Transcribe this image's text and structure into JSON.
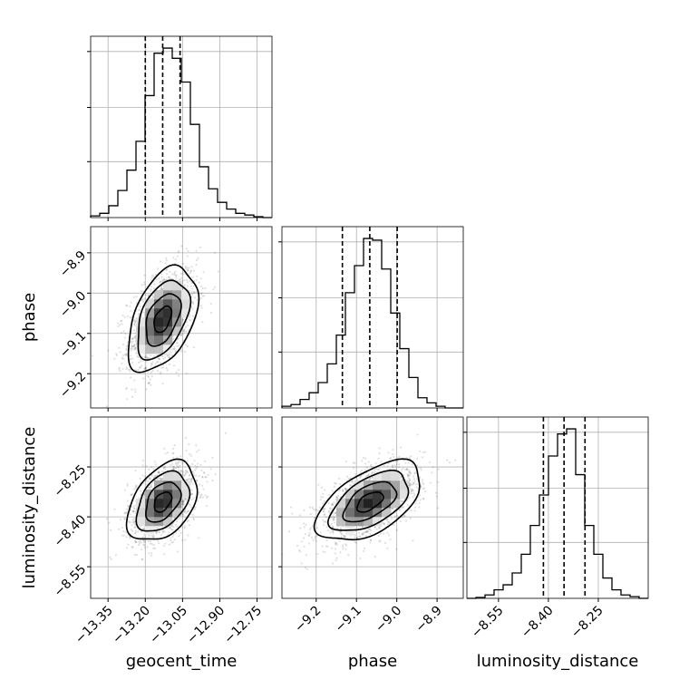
{
  "chart_data": {
    "type": "corner",
    "grid": true,
    "parameters": [
      "geocent_time",
      "phase",
      "luminosity_distance"
    ],
    "ranges": {
      "geocent_time": [
        -13.42,
        -12.69
      ],
      "phase": [
        -9.285,
        -8.835
      ],
      "luminosity_distance": [
        -8.645,
        -8.1
      ]
    },
    "ticks": {
      "geocent_time": [
        -13.35,
        -13.2,
        -13.05,
        -12.9,
        -12.75
      ],
      "phase": [
        -9.2,
        -9.1,
        -9.0,
        -8.9
      ],
      "luminosity_distance": [
        -8.55,
        -8.4,
        -8.25
      ]
    },
    "tick_labels": {
      "geocent_time": [
        "−13.35",
        "−13.20",
        "−13.05",
        "−12.90",
        "−12.75"
      ],
      "phase": [
        "−9.2",
        "−9.1",
        "−9.0",
        "−8.9"
      ],
      "luminosity_distance": [
        "−8.55",
        "−8.40",
        "−8.25"
      ]
    },
    "quantiles": {
      "geocent_time": [
        -13.2,
        -13.13,
        -13.06
      ],
      "phase": [
        -9.135,
        -9.067,
        -8.999
      ],
      "luminosity_distance": [
        -8.415,
        -8.353,
        -8.29
      ]
    },
    "histograms": {
      "geocent_time": {
        "edges": [
          -13.42,
          -13.3835,
          -13.347,
          -13.3105,
          -13.274,
          -13.2375,
          -13.201,
          -13.1645,
          -13.128,
          -13.0915,
          -13.055,
          -13.0185,
          -12.982,
          -12.9455,
          -12.909,
          -12.8725,
          -12.836,
          -12.7995,
          -12.763,
          -12.7265,
          -12.69
        ],
        "counts": [
          0.01,
          0.025,
          0.07,
          0.16,
          0.28,
          0.45,
          0.72,
          0.97,
          1.0,
          0.94,
          0.8,
          0.55,
          0.3,
          0.17,
          0.09,
          0.05,
          0.025,
          0.015,
          0.005,
          0.0
        ]
      },
      "phase": {
        "edges": [
          -9.285,
          -9.2625,
          -9.24,
          -9.2175,
          -9.195,
          -9.1725,
          -9.15,
          -9.1275,
          -9.105,
          -9.0825,
          -9.06,
          -9.0375,
          -9.015,
          -8.9925,
          -8.97,
          -8.9475,
          -8.925,
          -8.9025,
          -8.88,
          -8.8575,
          -8.835
        ],
        "counts": [
          0.01,
          0.02,
          0.05,
          0.09,
          0.15,
          0.26,
          0.43,
          0.68,
          0.84,
          1.0,
          0.99,
          0.82,
          0.56,
          0.35,
          0.18,
          0.06,
          0.03,
          0.01,
          0.0,
          0.0
        ]
      },
      "luminosity_distance": {
        "edges": [
          -8.645,
          -8.61775,
          -8.5905,
          -8.56325,
          -8.536,
          -8.50875,
          -8.4815,
          -8.45425,
          -8.427,
          -8.39975,
          -8.3725,
          -8.34525,
          -8.318,
          -8.29075,
          -8.2635,
          -8.23625,
          -8.209,
          -8.18175,
          -8.1545,
          -8.12725,
          -8.1
        ],
        "counts": [
          0.0,
          0.005,
          0.02,
          0.05,
          0.08,
          0.15,
          0.26,
          0.43,
          0.61,
          0.84,
          0.97,
          1.0,
          0.73,
          0.43,
          0.26,
          0.12,
          0.05,
          0.02,
          0.01,
          0.0
        ]
      }
    },
    "joint": [
      {
        "x": "geocent_time",
        "y": "phase",
        "center": [
          -13.13,
          -9.065
        ],
        "sigma": [
          0.07,
          0.065
        ],
        "correlation": 0.45
      },
      {
        "x": "geocent_time",
        "y": "luminosity_distance",
        "center": [
          -13.13,
          -8.355
        ],
        "sigma": [
          0.07,
          0.06
        ],
        "correlation": 0.4
      },
      {
        "x": "phase",
        "y": "luminosity_distance",
        "center": [
          -9.067,
          -8.355
        ],
        "sigma": [
          0.065,
          0.06
        ],
        "correlation": 0.55
      }
    ],
    "contour_levels": [
      0.5,
      1.0,
      1.5,
      2.0
    ]
  }
}
